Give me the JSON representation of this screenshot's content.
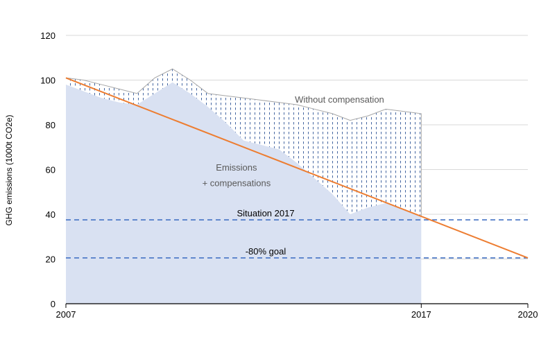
{
  "chart_data": {
    "type": "area",
    "title": "",
    "xlabel": "",
    "ylabel": "GHG emissions (1000t CO2e)",
    "ylim": [
      0,
      120
    ],
    "xlim": [
      2007,
      2020
    ],
    "yticks": [
      0,
      20,
      40,
      60,
      80,
      100,
      120
    ],
    "xtick_labels": [
      "2007",
      "2017",
      "2020"
    ],
    "x": [
      2007,
      2007.5,
      2008,
      2008.5,
      2009,
      2009.5,
      2010,
      2010.5,
      2011,
      2011.5,
      2012,
      2012.5,
      2013,
      2013.5,
      2014,
      2014.5,
      2015,
      2015.5,
      2016,
      2016.5,
      2017
    ],
    "series": [
      {
        "name": "Emissions\n+ compensations",
        "values": [
          98,
          95,
          92,
          90,
          89,
          94,
          99,
          94,
          88,
          81,
          73,
          71,
          69,
          63,
          56,
          49,
          40,
          43,
          45,
          42,
          39
        ]
      },
      {
        "name": "Without compensation",
        "values": [
          101,
          100,
          98,
          96,
          94,
          101,
          105,
          100,
          94,
          93,
          92,
          91,
          90,
          89,
          87,
          85,
          82,
          84,
          87,
          86,
          85
        ]
      }
    ],
    "trend_line": {
      "x": [
        2007,
        2020
      ],
      "y": [
        101,
        20.5
      ],
      "color": "#ed7d31"
    },
    "reference_lines": [
      {
        "label": "Situation 2017",
        "y": 37.5
      },
      {
        "label": "-80% goal",
        "y": 20.5
      }
    ],
    "annotations": [
      {
        "text": "Without compensation",
        "x": 2014.7,
        "y": 90
      },
      {
        "text": "Emissions",
        "x": 2011.8,
        "y": 59.5
      },
      {
        "text": "+ compensations",
        "x": 2011.8,
        "y": 52.5
      }
    ],
    "colors": {
      "area_fill": "#d9e1f2",
      "hatch": "#2f5597",
      "trend": "#ed7d31",
      "reference": "#4472c4",
      "grid": "#d9d9d9",
      "axis_text": "#000000",
      "annotation_text": "#595959"
    },
    "grid": true,
    "legend": "none"
  }
}
